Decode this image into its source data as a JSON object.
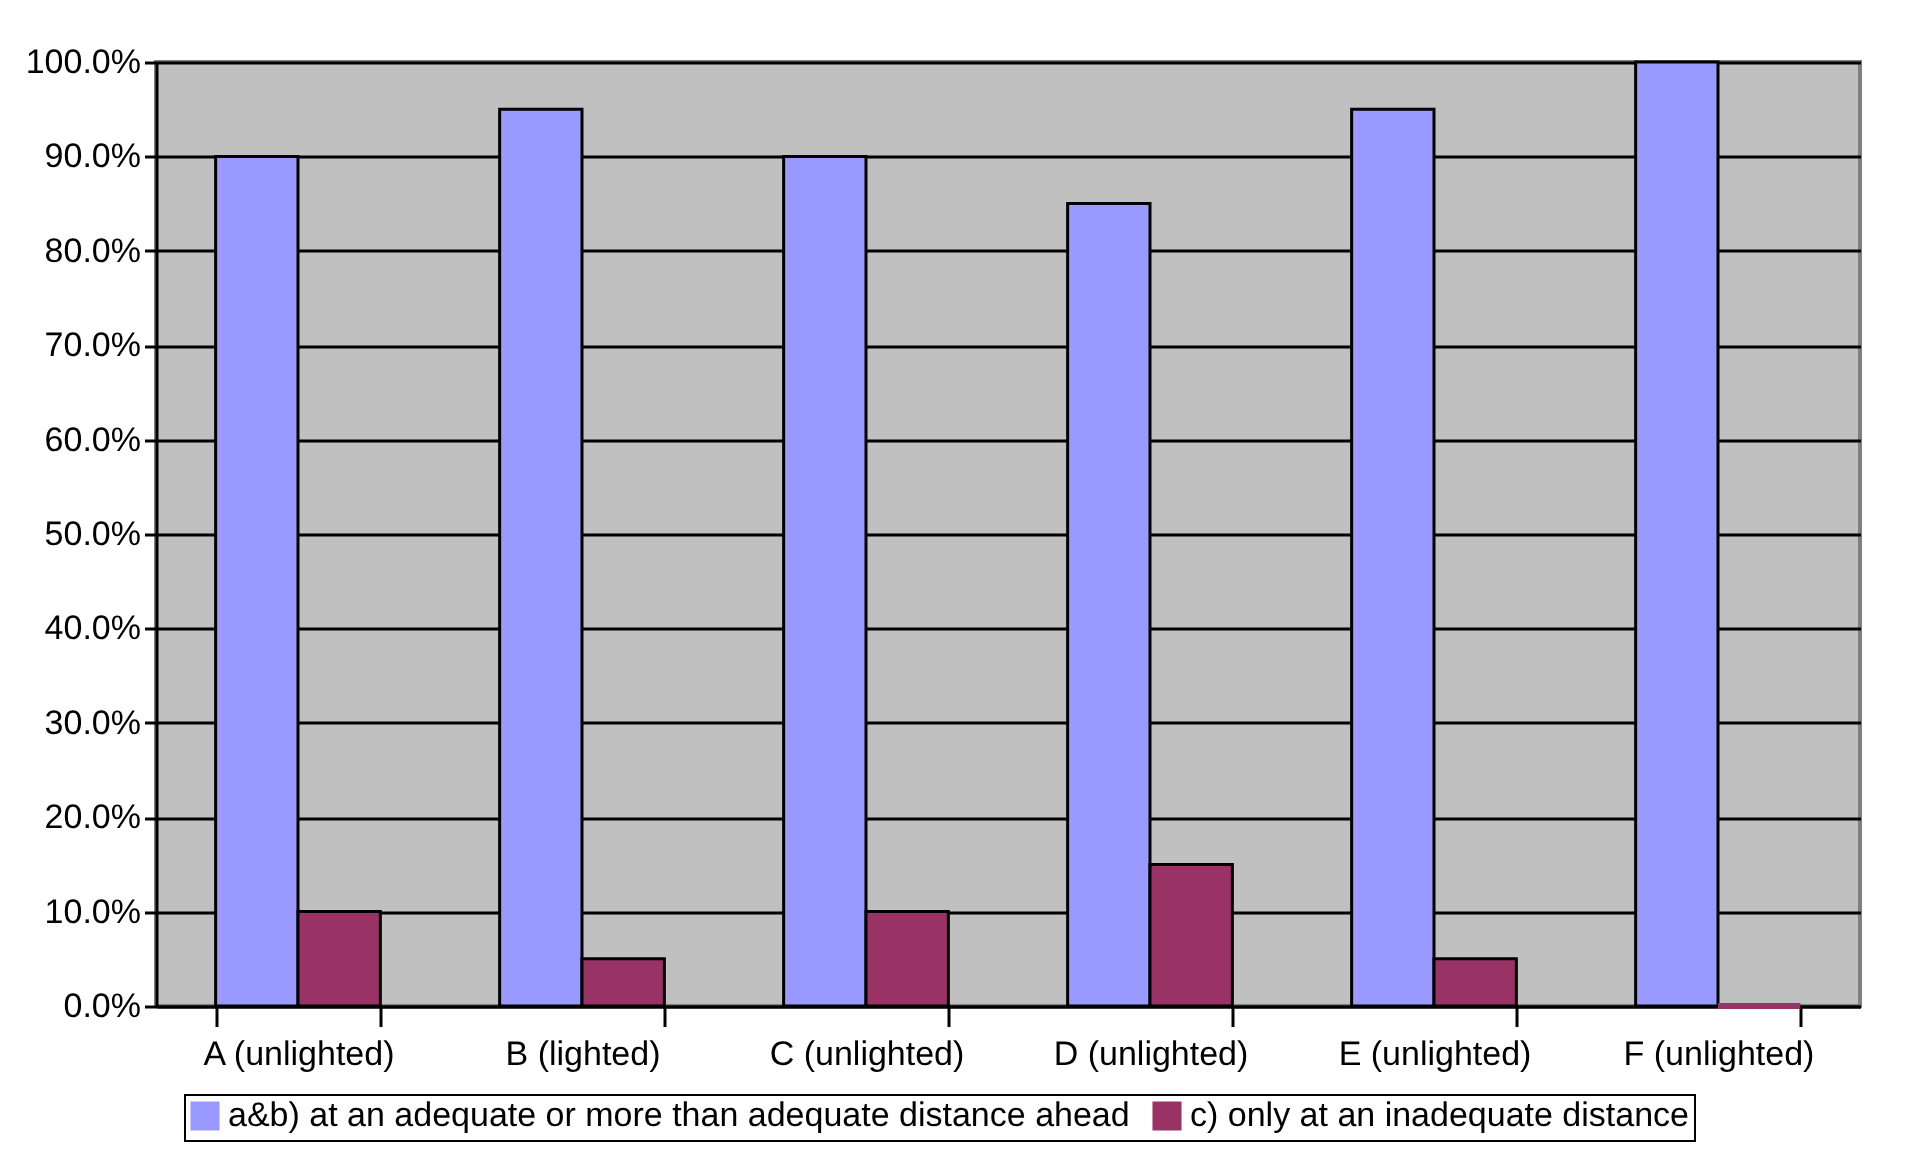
{
  "chart_data": {
    "type": "bar",
    "categories": [
      "A (unlighted)",
      "B (lighted)",
      "C (unlighted)",
      "D (unlighted)",
      "E (unlighted)",
      "F (unlighted)"
    ],
    "series": [
      {
        "name": "a&b) at an adequate or more than adequate distance ahead",
        "color": "#9999ff",
        "values": [
          90,
          95,
          90,
          85,
          95,
          100
        ]
      },
      {
        "name": "c) only at an inadequate distance",
        "color": "#993366",
        "values": [
          10,
          5,
          10,
          15,
          5,
          0
        ]
      }
    ],
    "ylim": [
      0,
      100
    ],
    "yticks": [
      {
        "value": 0,
        "label": "0.0%"
      },
      {
        "value": 10,
        "label": "10.0%"
      },
      {
        "value": 20,
        "label": "20.0%"
      },
      {
        "value": 30,
        "label": "30.0%"
      },
      {
        "value": 40,
        "label": "40.0%"
      },
      {
        "value": 50,
        "label": "50.0%"
      },
      {
        "value": 60,
        "label": "60.0%"
      },
      {
        "value": 70,
        "label": "70.0%"
      },
      {
        "value": 80,
        "label": "80.0%"
      },
      {
        "value": 90,
        "label": "90.0%"
      },
      {
        "value": 100,
        "label": "100.0%"
      }
    ],
    "grid": "y",
    "legend": "bottom"
  }
}
